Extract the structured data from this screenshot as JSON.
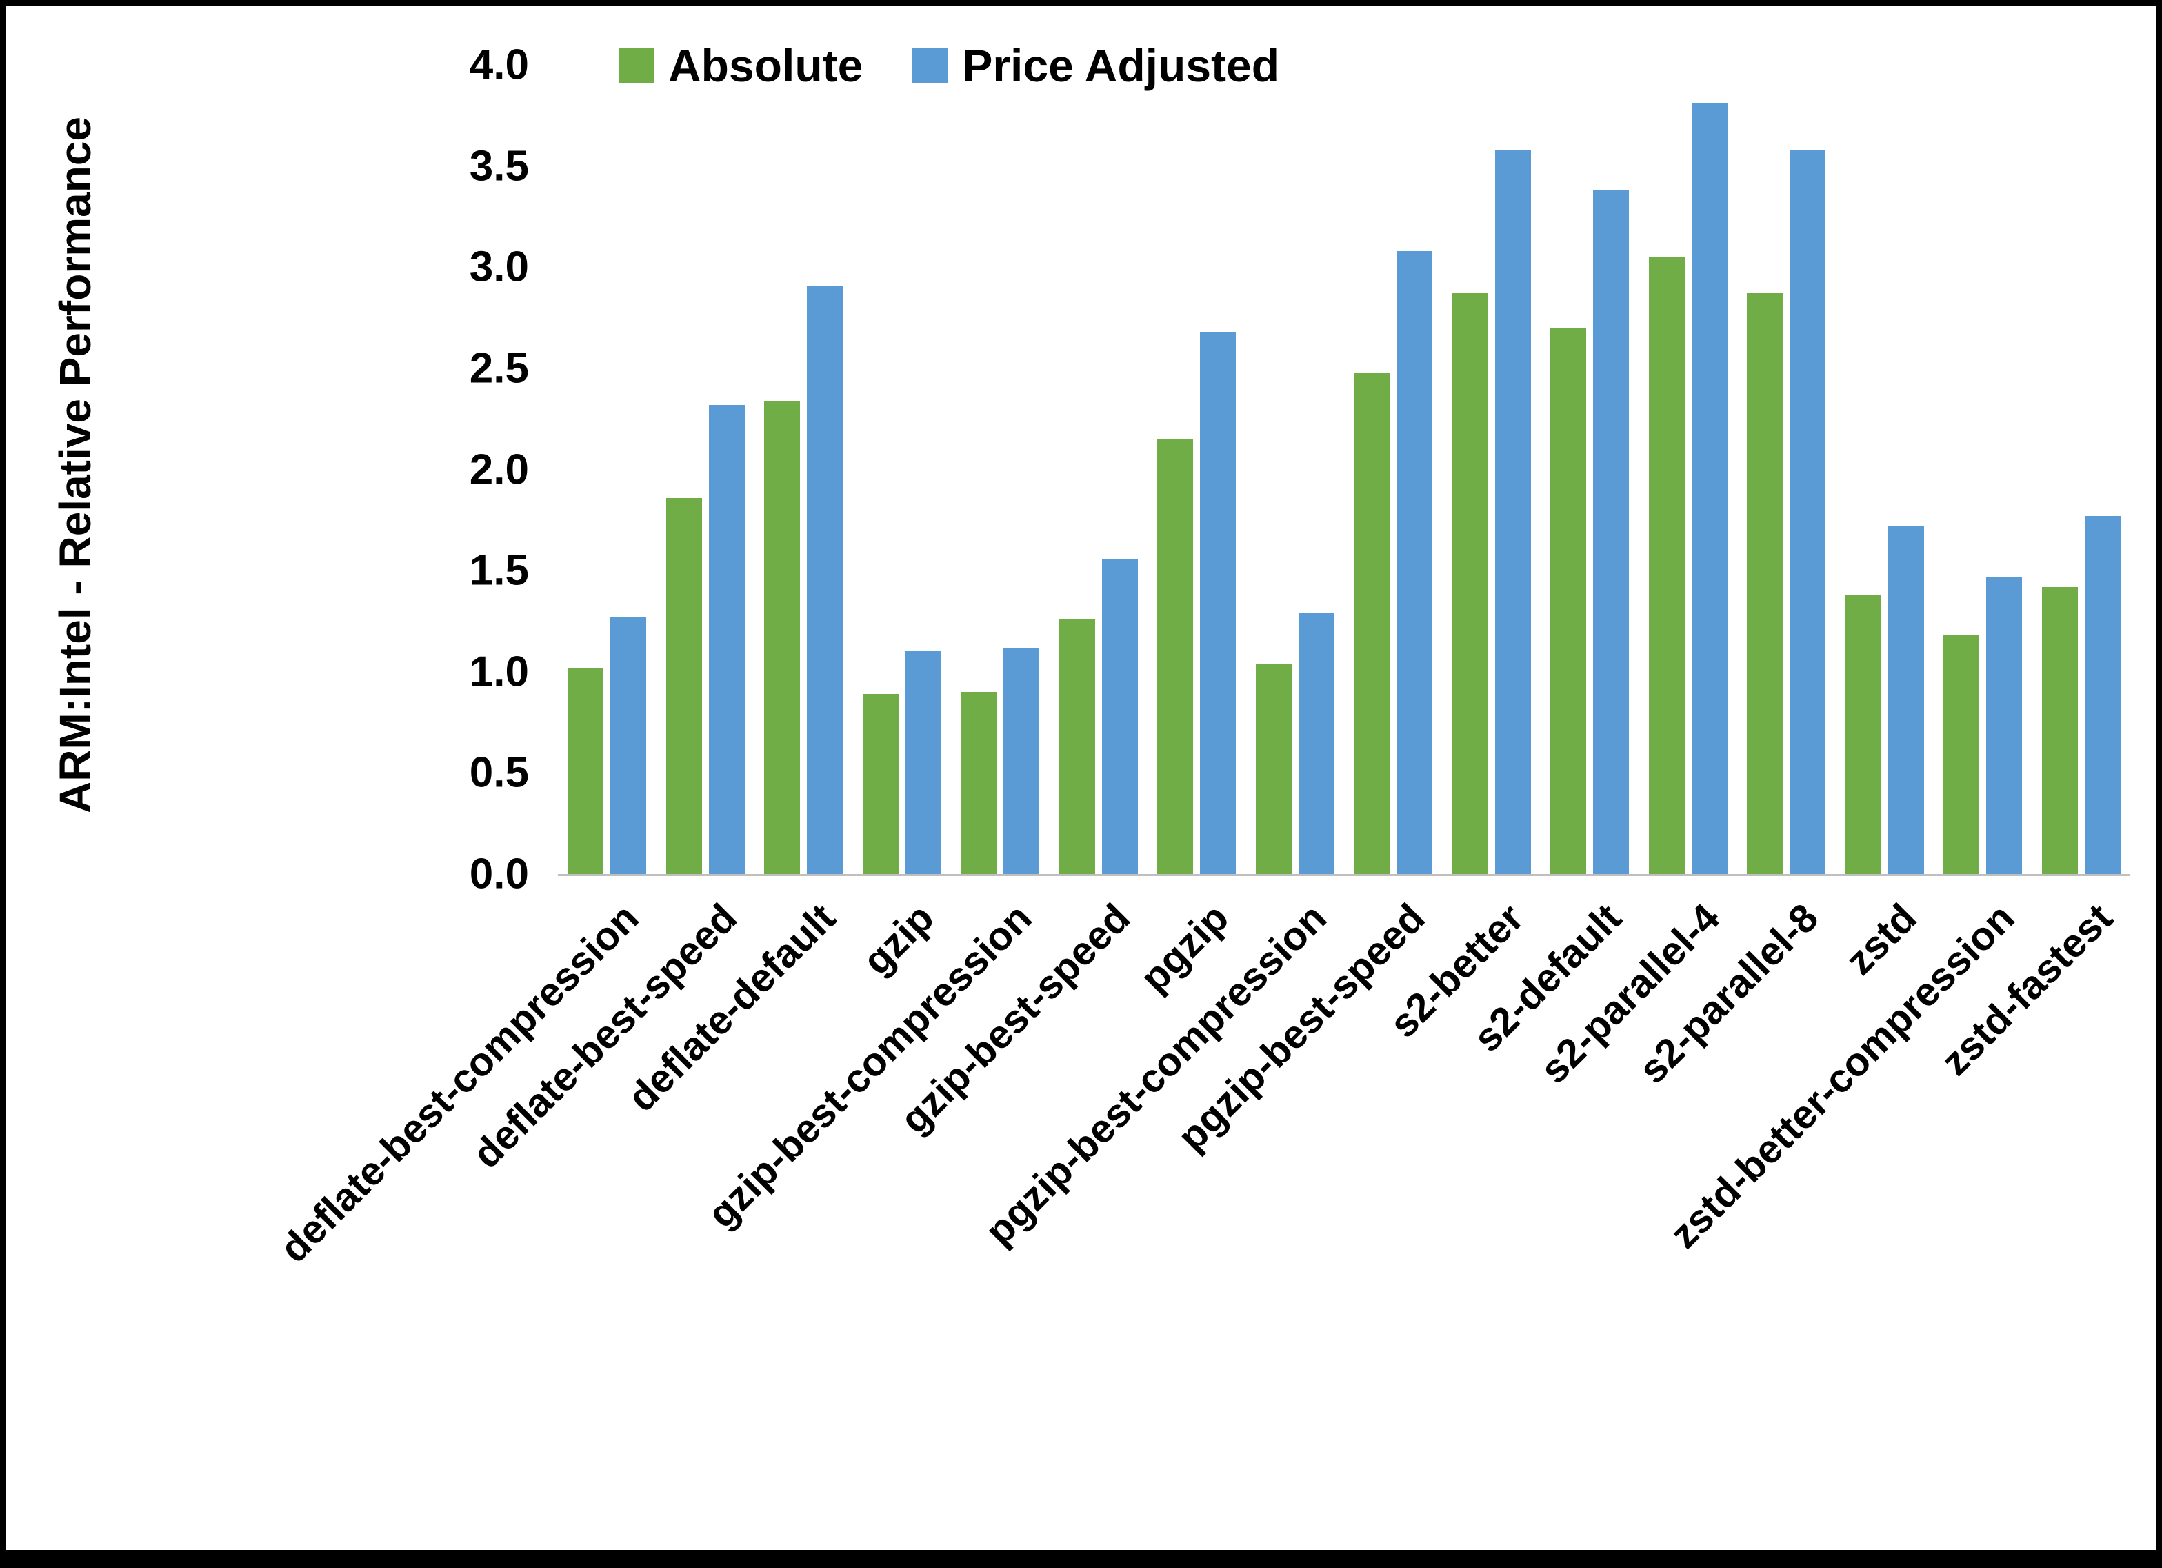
{
  "chart_data": {
    "type": "bar",
    "title": "",
    "xlabel": "",
    "ylabel": "ARM:Intel - Relative Performance",
    "ylim": [
      0.0,
      4.0
    ],
    "ytick_step": 0.5,
    "grid": false,
    "legend_position": "top",
    "axis_line_color": "#BFBFBF",
    "text_color": "#000000",
    "categories": [
      "deflate-best-compression",
      "deflate-best-speed",
      "deflate-default",
      "gzip",
      "gzip-best-compression",
      "gzip-best-speed",
      "pgzip",
      "pgzip-best-compression",
      "pgzip-best-speed",
      "s2-better",
      "s2-default",
      "s2-parallel-4",
      "s2-parallel-8",
      "zstd",
      "zstd-better-compression",
      "zstd-fastest"
    ],
    "series": [
      {
        "name": "Absolute",
        "color": "#70AD47",
        "values": [
          1.02,
          1.86,
          2.34,
          0.89,
          0.9,
          1.26,
          2.15,
          1.04,
          2.48,
          2.87,
          2.7,
          3.05,
          2.87,
          1.38,
          1.18,
          1.42
        ]
      },
      {
        "name": "Price Adjusted",
        "color": "#5B9BD5",
        "values": [
          1.27,
          2.32,
          2.91,
          1.1,
          1.12,
          1.56,
          2.68,
          1.29,
          3.08,
          3.58,
          3.38,
          3.81,
          3.58,
          1.72,
          1.47,
          1.77
        ]
      }
    ]
  }
}
